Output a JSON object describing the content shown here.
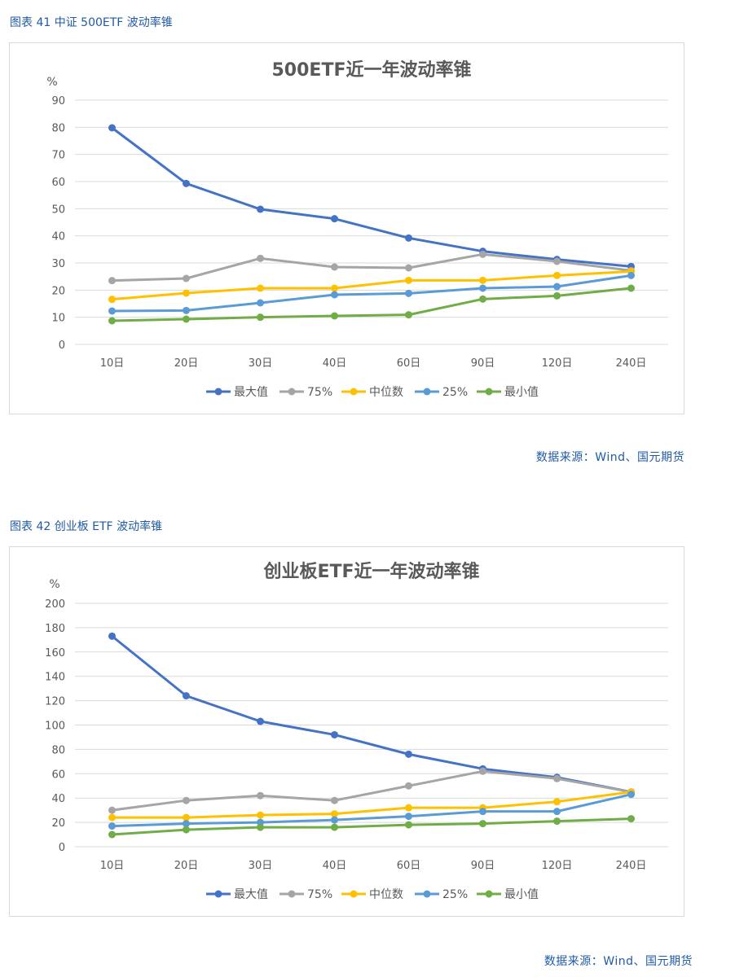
{
  "figures": [
    {
      "caption": "图表 41  中证 500ETF 波动率锥",
      "source": "数据来源：Wind、国元期货"
    },
    {
      "caption": "图表 42  创业板 ETF 波动率锥",
      "source": "数据来源：Wind、国元期货"
    }
  ],
  "chart_data": [
    {
      "type": "line",
      "title": "500ETF近一年波动率锥",
      "ylabel": "%",
      "ylim": [
        0,
        90
      ],
      "yticks": [
        0,
        10,
        20,
        30,
        40,
        50,
        60,
        70,
        80,
        90
      ],
      "grid": true,
      "legend_position": "bottom",
      "categories": [
        "10日",
        "20日",
        "30日",
        "40日",
        "60日",
        "90日",
        "120日",
        "240日"
      ],
      "series": [
        {
          "name": "最大值",
          "color": "#4472c4",
          "values": [
            79.8,
            59.3,
            49.8,
            46.3,
            39.2,
            34.3,
            31.3,
            28.7
          ]
        },
        {
          "name": "75%",
          "color": "#a5a5a5",
          "values": [
            23.5,
            24.3,
            31.7,
            28.5,
            28.2,
            33.2,
            30.6,
            27.2
          ]
        },
        {
          "name": "中位数",
          "color": "#ffc000",
          "values": [
            16.6,
            18.9,
            20.7,
            20.7,
            23.6,
            23.6,
            25.4,
            26.9
          ]
        },
        {
          "name": "25%",
          "color": "#5b9bd5",
          "values": [
            12.3,
            12.5,
            15.3,
            18.3,
            18.8,
            20.7,
            21.3,
            25.4
          ]
        },
        {
          "name": "最小值",
          "color": "#70ad47",
          "values": [
            8.7,
            9.3,
            10.0,
            10.5,
            10.9,
            16.7,
            17.9,
            20.7
          ]
        }
      ]
    },
    {
      "type": "line",
      "title": "创业板ETF近一年波动率锥",
      "ylabel": "%",
      "ylim": [
        0,
        200
      ],
      "yticks": [
        0,
        20,
        40,
        60,
        80,
        100,
        120,
        140,
        160,
        180,
        200
      ],
      "grid": true,
      "legend_position": "bottom",
      "categories": [
        "10日",
        "20日",
        "30日",
        "40日",
        "60日",
        "90日",
        "120日",
        "240日"
      ],
      "series": [
        {
          "name": "最大值",
          "color": "#4472c4",
          "values": [
            173,
            124,
            103,
            92,
            76,
            64,
            57,
            45
          ]
        },
        {
          "name": "75%",
          "color": "#a5a5a5",
          "values": [
            30,
            38,
            42,
            38,
            50,
            62,
            56,
            45
          ]
        },
        {
          "name": "中位数",
          "color": "#ffc000",
          "values": [
            24,
            24,
            26,
            27,
            32,
            32,
            37,
            45
          ]
        },
        {
          "name": "25%",
          "color": "#5b9bd5",
          "values": [
            17,
            19,
            20,
            22,
            25,
            29,
            29,
            43
          ]
        },
        {
          "name": "最小值",
          "color": "#70ad47",
          "values": [
            10,
            14,
            16,
            16,
            18,
            19,
            21,
            23
          ]
        }
      ]
    }
  ]
}
